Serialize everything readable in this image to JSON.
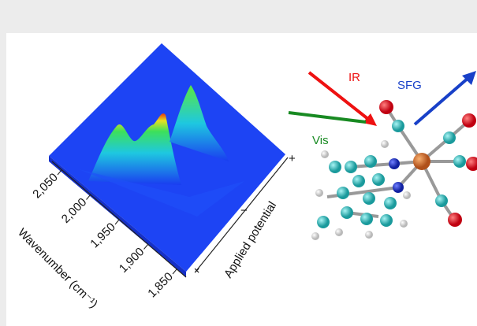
{
  "figure": {
    "beams": {
      "ir": "IR",
      "sfg": "SFG",
      "vis": "Vis"
    },
    "wavenumber_axis": {
      "label": "Wavenumber (cm⁻¹)",
      "ticks": [
        "2,050",
        "2,000",
        "1,950",
        "1,900",
        "1,850"
      ]
    },
    "potential_axis": {
      "label": "Applied potential",
      "ticks": [
        "+",
        "−",
        "+"
      ]
    }
  }
}
